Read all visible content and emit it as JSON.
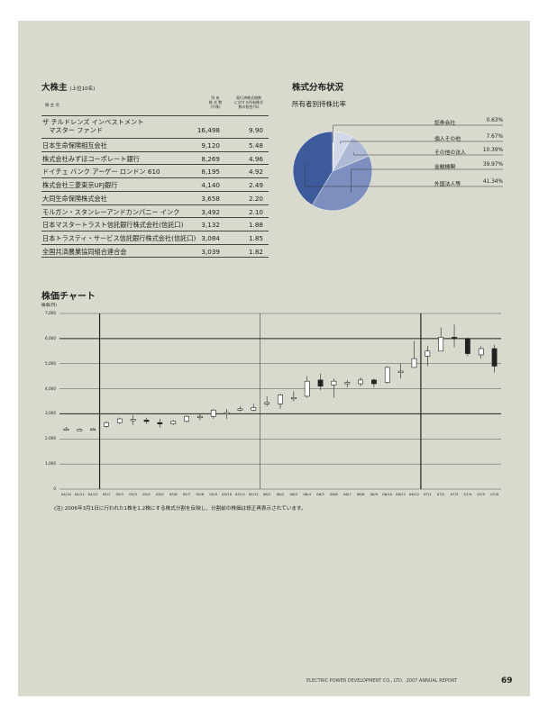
{
  "shareholders": {
    "title": "大株主",
    "title_note": "(上位10名)",
    "col_name": "株 主 名",
    "col_shares": "所 有\n株 式 数\n(千株)",
    "col_ratio": "発行済株式総数\nに対する所有株式\n数の割合(%)",
    "rows": [
      {
        "name": "ザ チルドレンズ インベストメント\n　マスター ファンド",
        "shares": "16,498",
        "ratio": "9.90"
      },
      {
        "name": "日本生命保険相互会社",
        "shares": "9,120",
        "ratio": "5.48"
      },
      {
        "name": "株式会社みずほコーポレート銀行",
        "shares": "8,269",
        "ratio": "4.96"
      },
      {
        "name": "ドイチェ バンク アーゲー ロンドン 610",
        "shares": "8,195",
        "ratio": "4.92"
      },
      {
        "name": "株式会社三菱東京UFJ銀行",
        "shares": "4,140",
        "ratio": "2.49"
      },
      {
        "name": "大同生命保険株式会社",
        "shares": "3,658",
        "ratio": "2.20"
      },
      {
        "name": "モルガン・スタンレーアンドカンパニー インク",
        "shares": "3,492",
        "ratio": "2.10"
      },
      {
        "name": "日本マスタートラスト信託銀行株式会社(信託口)",
        "shares": "3,132",
        "ratio": "1.88"
      },
      {
        "name": "日本トラスティ・サービス信託銀行株式会社(信託口)",
        "shares": "3,084",
        "ratio": "1.85"
      },
      {
        "name": "全国共済農業協同組合連合会",
        "shares": "3,039",
        "ratio": "1.82"
      }
    ]
  },
  "distribution": {
    "title": "株式分布状況",
    "subtitle": "所有者別持株比率",
    "slices": [
      {
        "name": "証券会社",
        "value": "0.63%",
        "pct": 0.63,
        "color": "#eef0f6"
      },
      {
        "name": "個人その他",
        "value": "7.67%",
        "pct": 7.67,
        "color": "#d2d8e8"
      },
      {
        "name": "その他の法人",
        "value": "10.39%",
        "pct": 10.39,
        "color": "#aeb9d6"
      },
      {
        "name": "金融機関",
        "value": "39.97%",
        "pct": 39.97,
        "color": "#7d8fbe"
      },
      {
        "name": "外国法人等",
        "value": "41.34%",
        "pct": 41.34,
        "color": "#3d5a9b"
      }
    ]
  },
  "chart_data": {
    "type": "candlestick",
    "title": "株価チャート",
    "ylabel": "株価(円)",
    "ylim": [
      0,
      7000
    ],
    "yticks": [
      "0",
      "1,000",
      "2,000",
      "3,000",
      "4,000",
      "5,000",
      "6,000",
      "7,000"
    ],
    "categories": [
      "04/10",
      "04/11",
      "04/12",
      "05/1",
      "05/2",
      "05/3",
      "05/4",
      "05/5",
      "05/6",
      "05/7",
      "05/8",
      "05/9",
      "05/10",
      "05/11",
      "05/12",
      "06/1",
      "06/2",
      "06/3",
      "06/4",
      "06/5",
      "06/6",
      "06/7",
      "06/8",
      "06/9",
      "06/10",
      "06/11",
      "06/12",
      "07/1",
      "07/2",
      "07/3",
      "07/4",
      "07/5",
      "07/6"
    ],
    "candles": [
      {
        "o": 2400,
        "c": 2400,
        "h": 2480,
        "l": 2320
      },
      {
        "o": 2380,
        "c": 2380,
        "h": 2420,
        "l": 2340
      },
      {
        "o": 2400,
        "c": 2400,
        "h": 2440,
        "l": 2360
      },
      {
        "o": 2500,
        "c": 2650,
        "h": 2700,
        "l": 2450
      },
      {
        "o": 2650,
        "c": 2800,
        "h": 2850,
        "l": 2600
      },
      {
        "o": 2750,
        "c": 2780,
        "h": 2950,
        "l": 2550
      },
      {
        "o": 2750,
        "c": 2700,
        "h": 2850,
        "l": 2600
      },
      {
        "o": 2650,
        "c": 2600,
        "h": 2800,
        "l": 2450
      },
      {
        "o": 2600,
        "c": 2700,
        "h": 2750,
        "l": 2550
      },
      {
        "o": 2700,
        "c": 2900,
        "h": 2950,
        "l": 2650
      },
      {
        "o": 2850,
        "c": 2900,
        "h": 3000,
        "l": 2750
      },
      {
        "o": 2900,
        "c": 3150,
        "h": 3200,
        "l": 2800
      },
      {
        "o": 3000,
        "c": 3050,
        "h": 3200,
        "l": 2800
      },
      {
        "o": 3150,
        "c": 3200,
        "h": 3300,
        "l": 3100
      },
      {
        "o": 3150,
        "c": 3250,
        "h": 3400,
        "l": 3100
      },
      {
        "o": 3450,
        "c": 3450,
        "h": 3700,
        "l": 3300
      },
      {
        "o": 3400,
        "c": 3750,
        "h": 3800,
        "l": 3200
      },
      {
        "o": 3650,
        "c": 3650,
        "h": 3900,
        "l": 3500
      },
      {
        "o": 3700,
        "c": 4300,
        "h": 4500,
        "l": 3650
      },
      {
        "o": 4350,
        "c": 4100,
        "h": 4600,
        "l": 3950
      },
      {
        "o": 4150,
        "c": 4300,
        "h": 4400,
        "l": 3650
      },
      {
        "o": 4250,
        "c": 4250,
        "h": 4350,
        "l": 4050
      },
      {
        "o": 4200,
        "c": 4350,
        "h": 4450,
        "l": 4100
      },
      {
        "o": 4350,
        "c": 4200,
        "h": 4400,
        "l": 4050
      },
      {
        "o": 4250,
        "c": 4850,
        "h": 4900,
        "l": 4200
      },
      {
        "o": 4700,
        "c": 4700,
        "h": 5000,
        "l": 4400
      },
      {
        "o": 4850,
        "c": 5200,
        "h": 5900,
        "l": 4850
      },
      {
        "o": 5300,
        "c": 5500,
        "h": 5700,
        "l": 4900
      },
      {
        "o": 5500,
        "c": 6050,
        "h": 6450,
        "l": 5500
      },
      {
        "o": 6050,
        "c": 6000,
        "h": 6550,
        "l": 5650
      },
      {
        "o": 6000,
        "c": 5400,
        "h": 6050,
        "l": 5300
      },
      {
        "o": 5350,
        "c": 5600,
        "h": 5700,
        "l": 5200
      },
      {
        "o": 5600,
        "c": 4900,
        "h": 5750,
        "l": 4650
      }
    ]
  },
  "note": "(注) 2006年3月1日に行われた1株を1.2株にする株式分割を反映し、分割前の株価は修正再表示されています。",
  "footer": {
    "company": "ELECTRIC POWER DEVELOPMENT CO., LTD.",
    "report": "2007 ANNUAL REPORT",
    "page": "69"
  }
}
